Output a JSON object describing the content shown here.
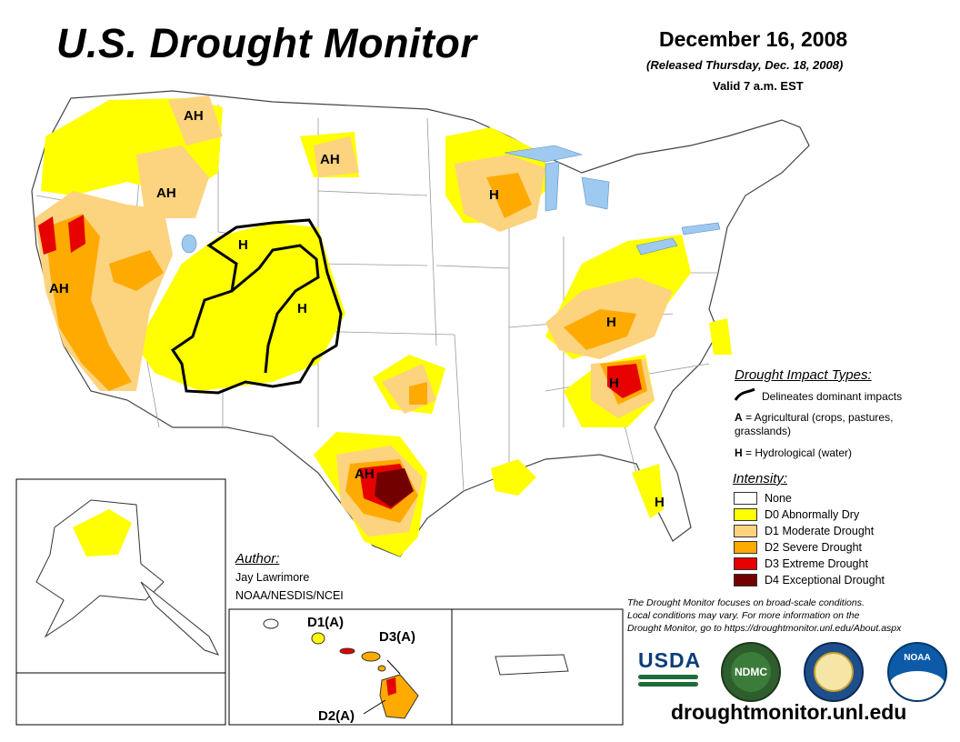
{
  "header": {
    "title": "U.S. Drought Monitor",
    "date": "December 16, 2008",
    "released": "(Released Thursday, Dec. 18, 2008)",
    "valid": "Valid 7 a.m. EST"
  },
  "colors": {
    "none": "#ffffff",
    "d0": "#ffff00",
    "d1": "#fcd37f",
    "d2": "#ffaa00",
    "d3": "#e60000",
    "d4": "#730000",
    "water": "#9ec9f0",
    "border": "#8a8a8a"
  },
  "map_labels": {
    "ah_montana": "AH",
    "ah_sd": "AH",
    "ah_idaho": "AH",
    "ah_calif": "AH",
    "h_wyoming": "H",
    "h_colorado": "H",
    "h_wisconsin": "H",
    "h_tennessee": "H",
    "h_carolina": "H",
    "ah_texas": "AH",
    "h_florida": "H",
    "hi_d1": "D1(A)",
    "hi_d3": "D3(A)",
    "hi_d2": "D2(A)"
  },
  "impact_legend": {
    "heading": "Drought Impact Types:",
    "line_desc": "Delineates dominant impacts",
    "a_key": "A",
    "a_desc": " = Agricultural (crops, pastures, grasslands)",
    "h_key": "H",
    "h_desc": " = Hydrological (water)"
  },
  "intensity_legend": {
    "heading": "Intensity:",
    "items": [
      {
        "label": "None",
        "color": "#ffffff"
      },
      {
        "label": "D0 Abnormally Dry",
        "color": "#ffff00"
      },
      {
        "label": "D1 Moderate Drought",
        "color": "#fcd37f"
      },
      {
        "label": "D2 Severe Drought",
        "color": "#ffaa00"
      },
      {
        "label": "D3 Extreme Drought",
        "color": "#e60000"
      },
      {
        "label": "D4 Exceptional Drought",
        "color": "#730000"
      }
    ]
  },
  "author": {
    "heading": "Author:",
    "name": "Jay Lawrimore",
    "org": "NOAA/NESDIS/NCEI"
  },
  "note": {
    "line1": "The Drought Monitor focuses on broad-scale conditions.",
    "line2": "Local conditions may vary. For more information on the",
    "line3": "Drought Monitor, go to https://droughtmonitor.unl.edu/About.aspx"
  },
  "logos": {
    "usda": "USDA",
    "ndmc": "NDMC",
    "noaa": "NOAA"
  },
  "footer": {
    "url": "droughtmonitor.unl.edu"
  }
}
